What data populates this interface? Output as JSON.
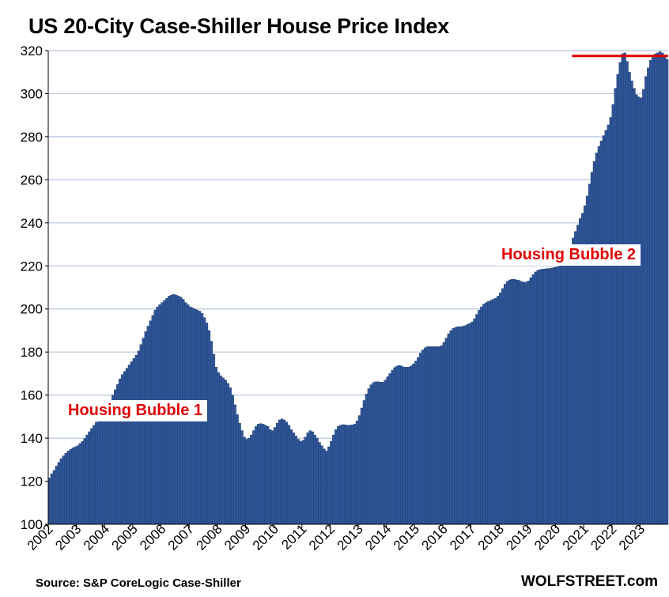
{
  "title": "US 20-City Case-Shiller House Price Index",
  "source": "Source: S&P CoreLogic Case-Shiller",
  "site": "WOLFSTREET.com",
  "annotations": {
    "bubble1": "Housing Bubble 1",
    "bubble2": "Housing Bubble 2"
  },
  "colors": {
    "bar": "#2f5597",
    "bar_edge": "#1b3868",
    "grid": "#b7c7dd",
    "annotation": "#e00000",
    "peak_line": "#e00000"
  },
  "chart_data": {
    "type": "bar",
    "title": "US 20-City Case-Shiller House Price Index",
    "frequency": "monthly",
    "x_range": [
      "2002-01",
      "2023-12"
    ],
    "x_ticks": [
      "2002",
      "2003",
      "2004",
      "2005",
      "2006",
      "2007",
      "2008",
      "2009",
      "2010",
      "2011",
      "2012",
      "2013",
      "2014",
      "2015",
      "2016",
      "2017",
      "2018",
      "2019",
      "2020",
      "2021",
      "2022",
      "2023"
    ],
    "ylim": [
      100,
      320
    ],
    "y_ticks": [
      100,
      120,
      140,
      160,
      180,
      200,
      220,
      240,
      260,
      280,
      300,
      320
    ],
    "grid": true,
    "reference_line": {
      "label": "",
      "value": 317.5,
      "start": "2020-08",
      "end": "2023-12"
    },
    "series": [
      {
        "values": [
          121.5,
          123.5,
          125.0,
          127.0,
          128.8,
          130.5,
          131.8,
          133.0,
          134.0,
          134.8,
          135.5,
          136.0,
          136.5,
          137.5,
          138.5,
          139.8,
          141.5,
          143.0,
          144.5,
          146.0,
          147.5,
          149.0,
          150.5,
          152.0,
          153.5,
          155.5,
          157.5,
          160.0,
          162.5,
          165.0,
          167.5,
          169.5,
          171.0,
          172.5,
          174.0,
          175.5,
          177.0,
          178.5,
          180.5,
          183.5,
          186.5,
          189.5,
          192.0,
          194.5,
          197.0,
          199.5,
          201.0,
          202.0,
          203.0,
          204.0,
          205.0,
          206.0,
          206.5,
          206.8,
          206.5,
          206.0,
          205.5,
          204.5,
          203.0,
          202.0,
          201.0,
          200.5,
          200.0,
          199.5,
          199.0,
          198.0,
          196.0,
          193.5,
          190.0,
          185.0,
          179.0,
          173.0,
          170.5,
          169.0,
          168.0,
          167.0,
          165.5,
          163.5,
          160.0,
          155.5,
          151.0,
          147.0,
          143.5,
          140.5,
          139.5,
          140.0,
          141.5,
          143.5,
          145.5,
          146.5,
          146.8,
          146.5,
          146.0,
          145.5,
          144.0,
          143.5,
          145.0,
          147.0,
          148.5,
          149.0,
          148.5,
          147.5,
          146.0,
          144.0,
          142.5,
          141.0,
          139.5,
          138.5,
          139.0,
          140.5,
          142.5,
          143.5,
          143.0,
          141.5,
          140.0,
          138.0,
          136.5,
          135.0,
          134.0,
          136.0,
          138.5,
          141.5,
          144.0,
          145.5,
          146.0,
          146.3,
          146.2,
          146.0,
          146.0,
          146.2,
          146.5,
          148.0,
          150.5,
          154.0,
          157.5,
          160.5,
          163.0,
          164.8,
          165.8,
          166.2,
          166.2,
          166.0,
          166.0,
          167.0,
          168.5,
          170.0,
          171.5,
          172.8,
          173.5,
          173.8,
          173.5,
          173.0,
          173.0,
          173.0,
          173.5,
          174.5,
          175.8,
          177.5,
          179.5,
          181.0,
          182.0,
          182.5,
          182.5,
          182.5,
          182.5,
          182.5,
          182.5,
          183.0,
          184.5,
          186.5,
          188.5,
          190.0,
          191.0,
          191.5,
          191.8,
          191.8,
          192.0,
          192.3,
          192.8,
          193.3,
          194.0,
          195.5,
          197.5,
          199.5,
          201.0,
          202.3,
          203.0,
          203.5,
          204.0,
          204.5,
          205.0,
          206.0,
          207.5,
          209.5,
          211.5,
          212.8,
          213.5,
          213.8,
          213.8,
          213.5,
          213.3,
          212.8,
          212.5,
          212.5,
          213.0,
          214.5,
          216.0,
          217.2,
          218.0,
          218.3,
          218.5,
          218.6,
          218.8,
          218.8,
          219.0,
          219.3,
          219.5,
          219.8,
          220.0,
          220.3,
          221.0,
          224.0,
          229.0,
          233.0,
          236.0,
          239.0,
          242.0,
          244.5,
          248.0,
          252.5,
          258.0,
          263.5,
          268.5,
          272.5,
          275.5,
          278.0,
          280.5,
          283.0,
          285.5,
          289.0,
          295.0,
          302.5,
          309.0,
          314.5,
          318.5,
          319.0,
          315.0,
          310.0,
          306.0,
          302.5,
          299.5,
          298.5,
          298.0,
          302.0,
          308.0,
          312.0,
          315.5,
          317.5,
          318.5,
          319.0,
          319.5,
          319.0,
          318.0,
          316.0
        ]
      }
    ]
  }
}
